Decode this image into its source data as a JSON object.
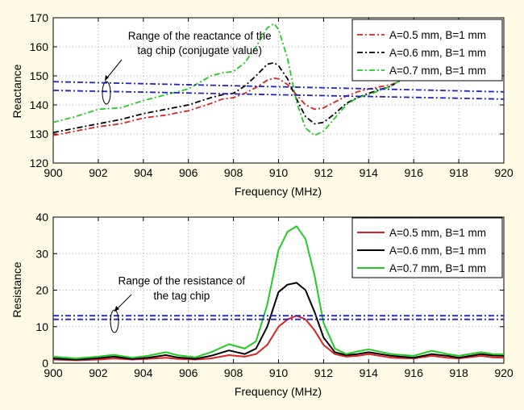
{
  "chart_data": [
    {
      "type": "line",
      "xlabel": "Frequency (MHz)",
      "ylabel": "Reactance",
      "xlim": [
        900,
        920
      ],
      "ylim": [
        120,
        170
      ],
      "xticks": [
        900,
        902,
        904,
        906,
        908,
        910,
        912,
        914,
        916,
        918,
        920
      ],
      "yticks": [
        120,
        130,
        140,
        150,
        160,
        170
      ],
      "grid": true,
      "legend_position": "top-right",
      "series": [
        {
          "name": "A=0.5 mm, B=1 mm",
          "color": "#dd2222",
          "dash": "dashdot",
          "x": [
            900,
            901,
            902,
            903,
            904,
            905,
            906,
            907,
            907.5,
            908,
            908.5,
            909,
            909.5,
            909.8,
            910,
            910.4,
            910.8,
            911.2,
            911.6,
            912,
            912.5,
            913,
            913.5,
            914,
            915,
            915.5
          ],
          "y": [
            129.5,
            131,
            132.5,
            133.5,
            135.5,
            136.5,
            138,
            140.5,
            142,
            142.5,
            144,
            146,
            148.5,
            149.2,
            149,
            147,
            143.5,
            140,
            138.5,
            139,
            141,
            143,
            144.5,
            145.5,
            147,
            148.5
          ]
        },
        {
          "name": "A=0.6 mm, B=1 mm",
          "color": "#000000",
          "dash": "dashdot",
          "x": [
            900,
            901,
            902,
            903,
            904,
            905,
            906,
            907,
            907.5,
            908,
            908.5,
            909,
            909.5,
            909.8,
            910,
            910.4,
            910.8,
            911.2,
            911.6,
            912,
            912.5,
            913,
            913.5,
            914,
            915,
            915.5
          ],
          "y": [
            130.5,
            132,
            133.5,
            135,
            137,
            138.5,
            140,
            142.5,
            143.5,
            144,
            146.5,
            150,
            154,
            154.5,
            153.5,
            149,
            142,
            136,
            133.5,
            134,
            137,
            140.5,
            142.5,
            144,
            146.5,
            149
          ]
        },
        {
          "name": "A=0.7 mm, B=1 mm",
          "color": "#22cc22",
          "dash": "dashdot",
          "x": [
            900,
            901,
            902,
            903,
            904,
            905,
            906,
            907,
            907.5,
            908,
            908.5,
            909,
            909.5,
            909.8,
            910,
            910.4,
            910.8,
            911.2,
            911.6,
            912,
            912.5,
            913,
            913.5,
            914,
            915,
            915.5
          ],
          "y": [
            134,
            136,
            138.5,
            139,
            141.5,
            143.5,
            145.5,
            150,
            151,
            151.5,
            154.5,
            160,
            166.5,
            168,
            166,
            156,
            141,
            132,
            129.5,
            131,
            135.5,
            140,
            142.5,
            143.5,
            146.5,
            149
          ]
        },
        {
          "name": "",
          "color": "#2222cc",
          "dash": "dashdot",
          "x": [
            900,
            920
          ],
          "y": [
            148,
            144.5
          ]
        },
        {
          "name": "",
          "color": "#2222cc",
          "dash": "dashdot",
          "x": [
            900,
            920
          ],
          "y": [
            145,
            142
          ]
        }
      ],
      "annotations": [
        {
          "text": "Range of the reactance of the",
          "x": 906.5,
          "y": 162.5
        },
        {
          "text": "tag chip (conjugate value)",
          "x": 906.5,
          "y": 157.5
        }
      ]
    },
    {
      "type": "line",
      "xlabel": "Frequency (MHz)",
      "ylabel": "Resistance",
      "xlim": [
        900,
        920
      ],
      "ylim": [
        0,
        40
      ],
      "xticks": [
        900,
        902,
        904,
        906,
        908,
        910,
        912,
        914,
        916,
        918,
        920
      ],
      "yticks": [
        0,
        10,
        20,
        30,
        40
      ],
      "grid": true,
      "legend_position": "top-right",
      "series": [
        {
          "name": "A=0.5 mm, B=1 mm",
          "color": "#dd2222",
          "dash": "solid",
          "x": [
            900,
            901,
            902,
            902.7,
            903.5,
            904.2,
            905,
            905.5,
            906.3,
            907,
            907.8,
            908.5,
            909,
            909.5,
            910,
            910.4,
            910.8,
            911.2,
            911.6,
            912,
            912.5,
            913,
            913.5,
            914,
            915,
            916,
            916.8,
            917.5,
            918,
            919,
            919.5,
            920
          ],
          "y": [
            1,
            0.8,
            1,
            1.3,
            1,
            1.2,
            1.5,
            1.2,
            1,
            1.3,
            2.2,
            1.8,
            2.5,
            5,
            10,
            12,
            13,
            12,
            9,
            5,
            2.5,
            1.8,
            2,
            2.5,
            1.5,
            1.3,
            2,
            1.5,
            1.3,
            2,
            1.6,
            1.5
          ]
        },
        {
          "name": "A=0.6 mm, B=1 mm",
          "color": "#000000",
          "dash": "solid",
          "x": [
            900,
            901,
            902,
            902.7,
            903.5,
            904.2,
            905,
            905.5,
            906.3,
            907,
            907.8,
            908.5,
            909,
            909.5,
            910,
            910.4,
            910.8,
            911.2,
            911.6,
            912,
            912.5,
            913,
            913.5,
            914,
            915,
            916,
            916.8,
            917.5,
            918,
            919,
            919.5,
            920
          ],
          "y": [
            1.3,
            1,
            1.4,
            1.8,
            1.2,
            1.5,
            2.2,
            1.6,
            1.2,
            2,
            3.5,
            2.5,
            4,
            10,
            19.5,
            21.5,
            22,
            20,
            14,
            7,
            3,
            2.2,
            2.5,
            3,
            2,
            1.5,
            2.5,
            2,
            1.5,
            2.5,
            2.1,
            2
          ]
        },
        {
          "name": "A=0.7 mm, B=1 mm",
          "color": "#22cc22",
          "dash": "solid",
          "x": [
            900,
            901,
            902,
            902.7,
            903.5,
            904.2,
            905,
            905.5,
            906.3,
            907,
            907.8,
            908.5,
            909,
            909.5,
            910,
            910.4,
            910.8,
            911.2,
            911.6,
            912,
            912.5,
            913,
            913.5,
            914,
            915,
            916,
            916.8,
            917.5,
            918,
            919,
            919.5,
            920
          ],
          "y": [
            1.8,
            1.3,
            1.8,
            2.3,
            1.5,
            2,
            3,
            2.2,
            1.6,
            3,
            5.2,
            4,
            6,
            16,
            31,
            36,
            37.5,
            34,
            24,
            11,
            4,
            2.5,
            3.2,
            3.8,
            2.5,
            2,
            3.4,
            2.5,
            2,
            3,
            2.5,
            2.4
          ]
        },
        {
          "name": "",
          "color": "#2222cc",
          "dash": "dashdot",
          "x": [
            900,
            920
          ],
          "y": [
            13,
            13
          ]
        },
        {
          "name": "",
          "color": "#2222cc",
          "dash": "dashdot",
          "x": [
            900,
            920
          ],
          "y": [
            12,
            12
          ]
        }
      ],
      "annotations": [
        {
          "text": "Range of the resistance of",
          "x": 905.7,
          "y": 21.5
        },
        {
          "text": "the tag chip",
          "x": 905.7,
          "y": 17.5
        }
      ]
    }
  ]
}
